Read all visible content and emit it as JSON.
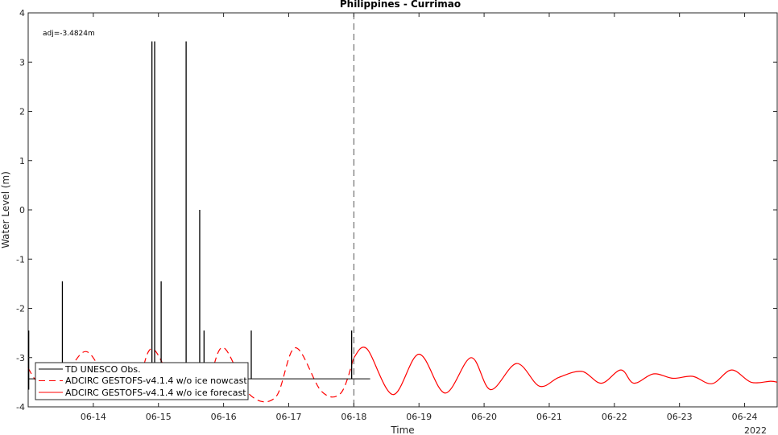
{
  "chart_data": {
    "type": "line",
    "title": "Philippines - Currimao",
    "xlabel": "Time",
    "ylabel": "Water Level (m)",
    "year_label": "2022",
    "annotation": "adj=-3.4824m",
    "ylim": [
      -4,
      4
    ],
    "yticks": [
      -4,
      -3,
      -2,
      -1,
      0,
      1,
      2,
      3,
      4
    ],
    "xlim": [
      "2022-06-13 00:00",
      "2022-06-24 12:00"
    ],
    "xtick_labels": [
      "06-14",
      "06-15",
      "06-16",
      "06-17",
      "06-18",
      "06-19",
      "06-20",
      "06-21",
      "06-22",
      "06-23",
      "06-24"
    ],
    "xtick_dates": [
      "2022-06-14",
      "2022-06-15",
      "2022-06-16",
      "2022-06-17",
      "2022-06-18",
      "2022-06-19",
      "2022-06-20",
      "2022-06-21",
      "2022-06-22",
      "2022-06-23",
      "2022-06-24"
    ],
    "nowcast_forecast_boundary": "2022-06-18 00:00",
    "grid": false,
    "legend_position": "bottom-left",
    "series": [
      {
        "name": "TD UNESCO Obs.",
        "color": "#000000",
        "style": "solid",
        "baseline": -3.43,
        "baseline_end": "2022-06-18 06:00",
        "spikes": [
          {
            "x": "2022-06-13 00:12",
            "y": -2.45,
            "low": -3.65
          },
          {
            "x": "2022-06-13 12:36",
            "y": -1.45,
            "low": -3.43
          },
          {
            "x": "2022-06-14 21:36",
            "y": 3.42,
            "low": -3.43
          },
          {
            "x": "2022-06-14 22:36",
            "y": 3.42,
            "low": -3.43
          },
          {
            "x": "2022-06-15 01:00",
            "y": -1.45,
            "low": -3.43
          },
          {
            "x": "2022-06-15 10:12",
            "y": 3.42,
            "low": -3.43
          },
          {
            "x": "2022-06-15 15:12",
            "y": 0.0,
            "low": -3.43
          },
          {
            "x": "2022-06-15 16:48",
            "y": -2.45,
            "low": -3.43
          },
          {
            "x": "2022-06-16 10:12",
            "y": -2.45,
            "low": -3.43
          },
          {
            "x": "2022-06-17 23:12",
            "y": -2.45,
            "low": -3.43
          }
        ]
      },
      {
        "name": "ADCIRC GESTOFS-v4.1.4 w/o ice nowcast",
        "color": "#ff0000",
        "style": "dashed",
        "x": [
          "2022-06-13 00:00",
          "2022-06-13 04:48",
          "2022-06-13 14:24",
          "2022-06-13 21:36",
          "2022-06-14 06:00",
          "2022-06-14 15:36",
          "2022-06-14 21:36",
          "2022-06-15 07:12",
          "2022-06-15 18:00",
          "2022-06-16 00:00",
          "2022-06-16 09:36",
          "2022-06-16 19:12",
          "2022-06-17 02:24",
          "2022-06-17 12:00",
          "2022-06-17 19:12",
          "2022-06-18 00:00"
        ],
        "values": [
          -3.22,
          -3.52,
          -3.25,
          -2.88,
          -3.48,
          -3.58,
          -2.82,
          -3.62,
          -3.42,
          -2.8,
          -3.75,
          -3.8,
          -2.8,
          -3.68,
          -3.72,
          -3.0
        ]
      },
      {
        "name": "ADCIRC GESTOFS-v4.1.4 w/o ice forecast",
        "color": "#ff0000",
        "style": "solid",
        "x": [
          "2022-06-18 00:00",
          "2022-06-18 04:48",
          "2022-06-18 14:24",
          "2022-06-19 00:00",
          "2022-06-19 09:36",
          "2022-06-19 19:12",
          "2022-06-20 02:24",
          "2022-06-20 12:00",
          "2022-06-20 20:24",
          "2022-06-21 03:36",
          "2022-06-21 12:00",
          "2022-06-21 19:12",
          "2022-06-22 02:24",
          "2022-06-22 07:12",
          "2022-06-22 14:24",
          "2022-06-22 21:36",
          "2022-06-23 04:48",
          "2022-06-23 12:00",
          "2022-06-23 19:12",
          "2022-06-24 02:24",
          "2022-06-24 09:36",
          "2022-06-24 12:00"
        ],
        "values": [
          -3.0,
          -2.82,
          -3.75,
          -2.93,
          -3.72,
          -3.0,
          -3.65,
          -3.12,
          -3.58,
          -3.4,
          -3.28,
          -3.52,
          -3.25,
          -3.52,
          -3.33,
          -3.42,
          -3.38,
          -3.53,
          -3.25,
          -3.5,
          -3.48,
          -3.5
        ]
      }
    ]
  }
}
